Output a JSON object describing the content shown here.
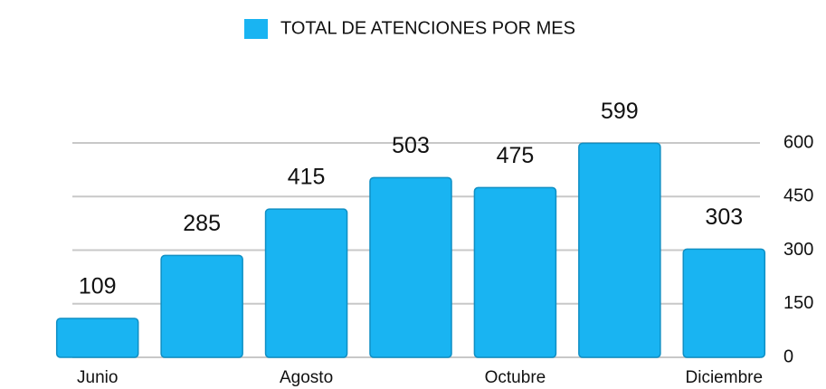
{
  "chart_data": {
    "type": "bar",
    "categories": [
      "Junio",
      null,
      "Agosto",
      null,
      "Octubre",
      null,
      "Diciembre"
    ],
    "series": [
      {
        "name": "TOTAL DE ATENCIONES POR MES",
        "color": "#19b4f2",
        "values": [
          109,
          285,
          415,
          503,
          475,
          599,
          303
        ]
      }
    ],
    "ylim": [
      0,
      600
    ],
    "yticks": [
      0,
      150,
      300,
      450,
      600
    ],
    "grid": true,
    "legend": "top"
  }
}
